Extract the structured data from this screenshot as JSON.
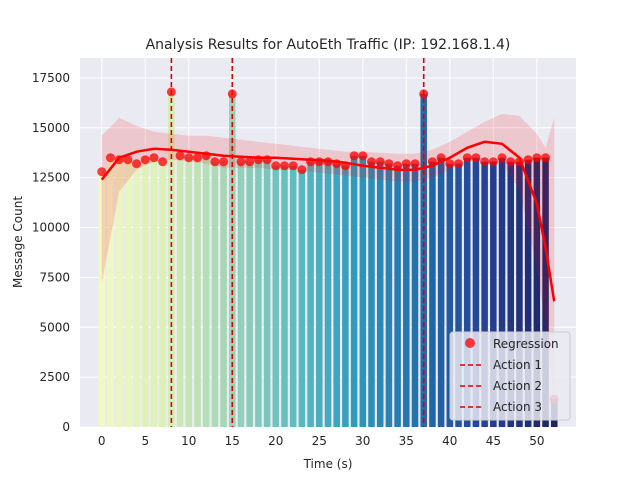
{
  "chart_data": {
    "type": "bar",
    "title": "Analysis Results for AutoEth Traffic (IP: 192.168.1.4)",
    "xlabel": "Time (s)",
    "ylabel": "Message Count",
    "xlim": [
      -2.5,
      54.5
    ],
    "ylim": [
      0,
      18500
    ],
    "xticks": [
      0,
      5,
      10,
      15,
      20,
      25,
      30,
      35,
      40,
      45,
      50
    ],
    "yticks": [
      0,
      2500,
      5000,
      7500,
      10000,
      12500,
      15000,
      17500
    ],
    "grid": true,
    "legend_position": "lower-right",
    "bar_colormap": [
      "#f2f9c3",
      "#d9efb3",
      "#9dd3b8",
      "#5cbcc0",
      "#2e96bd",
      "#226aa9",
      "#253f93",
      "#1c2562"
    ],
    "x": [
      0,
      1,
      2,
      3,
      4,
      5,
      6,
      7,
      8,
      9,
      10,
      11,
      12,
      13,
      14,
      15,
      16,
      17,
      18,
      19,
      20,
      21,
      22,
      23,
      24,
      25,
      26,
      27,
      28,
      29,
      30,
      31,
      32,
      33,
      34,
      35,
      36,
      37,
      38,
      39,
      40,
      41,
      42,
      43,
      44,
      45,
      46,
      47,
      48,
      49,
      50,
      51,
      52
    ],
    "values": [
      12800,
      13500,
      13400,
      13400,
      13200,
      13400,
      13500,
      13300,
      16800,
      13600,
      13500,
      13500,
      13600,
      13300,
      13300,
      16700,
      13300,
      13300,
      13400,
      13400,
      13100,
      13100,
      13100,
      12900,
      13300,
      13300,
      13300,
      13200,
      13100,
      13600,
      13600,
      13300,
      13300,
      13200,
      13100,
      13200,
      13200,
      16700,
      13300,
      13500,
      13200,
      13200,
      13500,
      13500,
      13300,
      13300,
      13500,
      13300,
      13300,
      13400,
      13500,
      13500,
      1400
    ],
    "series": [
      {
        "name": "Regression",
        "kind": "scatter+fit",
        "color": "#ff0000",
        "fit_line": [
          [
            0,
            12400
          ],
          [
            2,
            13500
          ],
          [
            4,
            13800
          ],
          [
            6,
            13950
          ],
          [
            8,
            13900
          ],
          [
            10,
            13800
          ],
          [
            12,
            13700
          ],
          [
            14,
            13600
          ],
          [
            16,
            13550
          ],
          [
            18,
            13500
          ],
          [
            20,
            13500
          ],
          [
            22,
            13450
          ],
          [
            24,
            13400
          ],
          [
            26,
            13350
          ],
          [
            28,
            13250
          ],
          [
            30,
            13100
          ],
          [
            32,
            13000
          ],
          [
            34,
            12900
          ],
          [
            36,
            12900
          ],
          [
            38,
            13100
          ],
          [
            40,
            13500
          ],
          [
            42,
            14000
          ],
          [
            44,
            14300
          ],
          [
            46,
            14200
          ],
          [
            48,
            13500
          ],
          [
            50,
            11200
          ],
          [
            51,
            9000
          ],
          [
            52,
            6300
          ]
        ],
        "ci_upper": [
          [
            0,
            14600
          ],
          [
            2,
            15500
          ],
          [
            4,
            15100
          ],
          [
            6,
            14800
          ],
          [
            8,
            14700
          ],
          [
            10,
            14600
          ],
          [
            12,
            14600
          ],
          [
            14,
            14500
          ],
          [
            16,
            14400
          ],
          [
            18,
            14300
          ],
          [
            20,
            14200
          ],
          [
            22,
            14100
          ],
          [
            24,
            14000
          ],
          [
            26,
            13900
          ],
          [
            28,
            13800
          ],
          [
            30,
            13800
          ],
          [
            32,
            13750
          ],
          [
            34,
            13700
          ],
          [
            36,
            13700
          ],
          [
            38,
            13900
          ],
          [
            40,
            14300
          ],
          [
            42,
            14800
          ],
          [
            44,
            15300
          ],
          [
            46,
            15700
          ],
          [
            48,
            15600
          ],
          [
            50,
            14700
          ],
          [
            51,
            14000
          ],
          [
            52,
            15500
          ]
        ],
        "ci_lower": [
          [
            0,
            7200
          ],
          [
            1,
            9500
          ],
          [
            2,
            11800
          ],
          [
            4,
            12900
          ],
          [
            6,
            13300
          ],
          [
            8,
            13400
          ],
          [
            10,
            13300
          ],
          [
            12,
            13200
          ],
          [
            14,
            13000
          ],
          [
            16,
            13000
          ],
          [
            18,
            13000
          ],
          [
            20,
            12900
          ],
          [
            22,
            12900
          ],
          [
            24,
            12800
          ],
          [
            26,
            12700
          ],
          [
            28,
            12600
          ],
          [
            30,
            12500
          ],
          [
            32,
            12400
          ],
          [
            34,
            12300
          ],
          [
            36,
            12300
          ],
          [
            38,
            12500
          ],
          [
            40,
            12900
          ],
          [
            42,
            13300
          ],
          [
            44,
            13400
          ],
          [
            46,
            13200
          ],
          [
            48,
            11900
          ],
          [
            50,
            8000
          ],
          [
            51,
            5000
          ],
          [
            52,
            1500
          ]
        ]
      },
      {
        "name": "Action 1",
        "kind": "vline",
        "x": 8,
        "color": "#dd0000"
      },
      {
        "name": "Action 2",
        "kind": "vline",
        "x": 15,
        "color": "#dd0000"
      },
      {
        "name": "Action 3",
        "kind": "vline",
        "x": 37,
        "color": "#dd0000"
      }
    ]
  }
}
